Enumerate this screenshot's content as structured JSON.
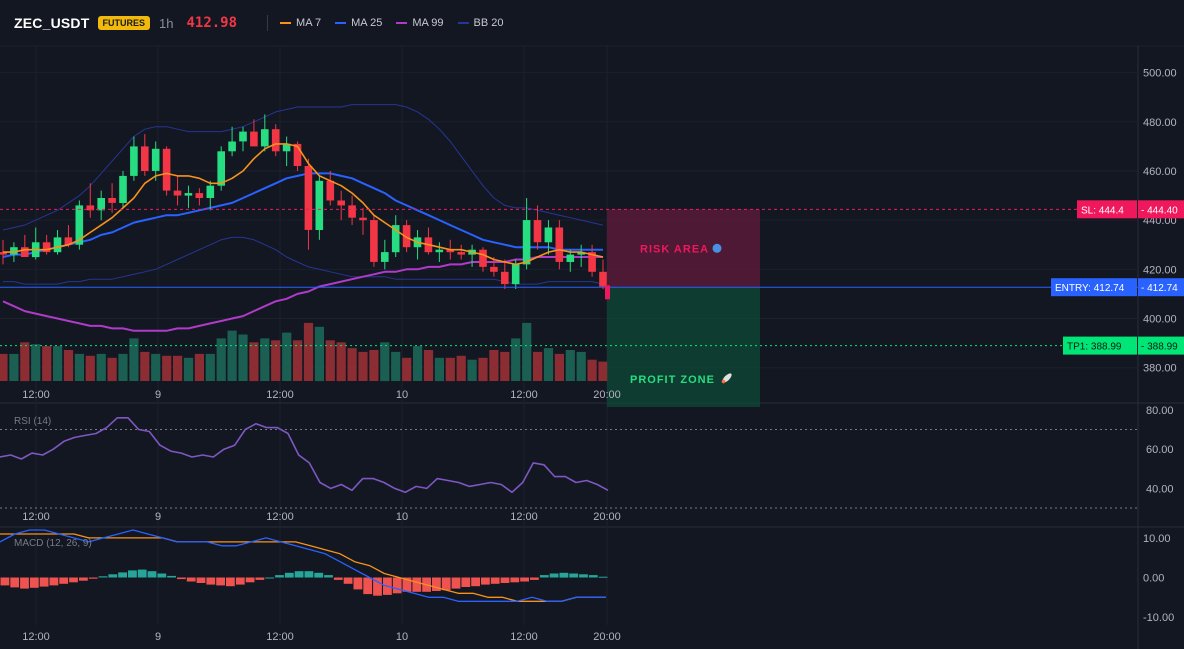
{
  "header": {
    "symbol": "ZEC_USDT",
    "badge": "FUTURES",
    "timeframe": "1h",
    "last_price": "412.98",
    "indicators": [
      {
        "label": "MA 7",
        "color": "#f7931a"
      },
      {
        "label": "MA 25",
        "color": "#2962ff"
      },
      {
        "label": "MA 99",
        "color": "#b03ac9"
      },
      {
        "label": "BB 20",
        "color": "#283593"
      }
    ]
  },
  "colors": {
    "up": "#26de81",
    "down": "#f23645",
    "vol_up": "#1b5e52",
    "vol_down": "#8b2d33",
    "sl": "#f0185c",
    "entry": "#2962ff",
    "tp": "#00e676"
  },
  "chart_data": [
    {
      "type": "candlestick",
      "title": "",
      "x_tick_labels": [
        "12:00",
        "9",
        "12:00",
        "10",
        "12:00",
        "20:00"
      ],
      "y_ticks": [
        380,
        400,
        420,
        440,
        460,
        480,
        500
      ],
      "ylim": [
        375,
        510
      ],
      "candles": [
        {
          "o": 427,
          "h": 432,
          "l": 422,
          "c": 426
        },
        {
          "o": 426,
          "h": 431,
          "l": 423,
          "c": 429
        },
        {
          "o": 429,
          "h": 434,
          "l": 425,
          "c": 425
        },
        {
          "o": 425,
          "h": 437,
          "l": 424,
          "c": 431
        },
        {
          "o": 431,
          "h": 434,
          "l": 426,
          "c": 427
        },
        {
          "o": 427,
          "h": 436,
          "l": 426,
          "c": 433
        },
        {
          "o": 433,
          "h": 438,
          "l": 429,
          "c": 430
        },
        {
          "o": 430,
          "h": 448,
          "l": 428,
          "c": 446
        },
        {
          "o": 446,
          "h": 455,
          "l": 441,
          "c": 444
        },
        {
          "o": 444,
          "h": 452,
          "l": 440,
          "c": 449
        },
        {
          "o": 449,
          "h": 455,
          "l": 443,
          "c": 447
        },
        {
          "o": 447,
          "h": 460,
          "l": 445,
          "c": 458
        },
        {
          "o": 458,
          "h": 474,
          "l": 456,
          "c": 470
        },
        {
          "o": 470,
          "h": 475,
          "l": 458,
          "c": 460
        },
        {
          "o": 460,
          "h": 472,
          "l": 456,
          "c": 469
        },
        {
          "o": 469,
          "h": 470,
          "l": 450,
          "c": 452
        },
        {
          "o": 452,
          "h": 458,
          "l": 446,
          "c": 450
        },
        {
          "o": 450,
          "h": 454,
          "l": 445,
          "c": 451
        },
        {
          "o": 451,
          "h": 453,
          "l": 446,
          "c": 449
        },
        {
          "o": 449,
          "h": 456,
          "l": 444,
          "c": 454
        },
        {
          "o": 454,
          "h": 470,
          "l": 452,
          "c": 468
        },
        {
          "o": 468,
          "h": 478,
          "l": 466,
          "c": 472
        },
        {
          "o": 472,
          "h": 478,
          "l": 468,
          "c": 476
        },
        {
          "o": 476,
          "h": 481,
          "l": 470,
          "c": 470
        },
        {
          "o": 470,
          "h": 483,
          "l": 468,
          "c": 477
        },
        {
          "o": 477,
          "h": 479,
          "l": 466,
          "c": 468
        },
        {
          "o": 468,
          "h": 474,
          "l": 462,
          "c": 471
        },
        {
          "o": 471,
          "h": 472,
          "l": 460,
          "c": 462
        },
        {
          "o": 462,
          "h": 465,
          "l": 428,
          "c": 436
        },
        {
          "o": 436,
          "h": 458,
          "l": 432,
          "c": 456
        },
        {
          "o": 456,
          "h": 460,
          "l": 446,
          "c": 448
        },
        {
          "o": 448,
          "h": 452,
          "l": 440,
          "c": 446
        },
        {
          "o": 446,
          "h": 450,
          "l": 438,
          "c": 441
        },
        {
          "o": 441,
          "h": 445,
          "l": 434,
          "c": 440
        },
        {
          "o": 440,
          "h": 442,
          "l": 421,
          "c": 423
        },
        {
          "o": 423,
          "h": 432,
          "l": 420,
          "c": 427
        },
        {
          "o": 427,
          "h": 442,
          "l": 425,
          "c": 438
        },
        {
          "o": 438,
          "h": 440,
          "l": 427,
          "c": 429
        },
        {
          "o": 429,
          "h": 436,
          "l": 424,
          "c": 433
        },
        {
          "o": 433,
          "h": 437,
          "l": 426,
          "c": 427
        },
        {
          "o": 427,
          "h": 431,
          "l": 423,
          "c": 428
        },
        {
          "o": 428,
          "h": 432,
          "l": 424,
          "c": 427
        },
        {
          "o": 427,
          "h": 430,
          "l": 424,
          "c": 426
        },
        {
          "o": 426,
          "h": 430,
          "l": 421,
          "c": 428
        },
        {
          "o": 428,
          "h": 429,
          "l": 419,
          "c": 421
        },
        {
          "o": 421,
          "h": 425,
          "l": 417,
          "c": 419
        },
        {
          "o": 419,
          "h": 424,
          "l": 412,
          "c": 414
        },
        {
          "o": 414,
          "h": 424,
          "l": 412,
          "c": 422
        },
        {
          "o": 422,
          "h": 449,
          "l": 420,
          "c": 440
        },
        {
          "o": 440,
          "h": 446,
          "l": 428,
          "c": 431
        },
        {
          "o": 431,
          "h": 440,
          "l": 426,
          "c": 437
        },
        {
          "o": 437,
          "h": 440,
          "l": 420,
          "c": 423
        },
        {
          "o": 423,
          "h": 428,
          "l": 419,
          "c": 426
        },
        {
          "o": 426,
          "h": 430,
          "l": 421,
          "c": 427
        },
        {
          "o": 427,
          "h": 430,
          "l": 417,
          "c": 419
        },
        {
          "o": 419,
          "h": 424,
          "l": 412,
          "c": 413
        }
      ],
      "volume": [
        14,
        14,
        20,
        19,
        18,
        18,
        16,
        14,
        13,
        14,
        12,
        14,
        22,
        15,
        14,
        13,
        13,
        12,
        14,
        14,
        22,
        26,
        24,
        20,
        22,
        21,
        25,
        21,
        30,
        28,
        21,
        20,
        17,
        15,
        16,
        20,
        15,
        12,
        18,
        16,
        12,
        12,
        13,
        11,
        12,
        16,
        15,
        22,
        30,
        15,
        17,
        14,
        16,
        15,
        11,
        10
      ],
      "overlays": [
        {
          "name": "MA 7",
          "values": [
            427,
            427,
            428,
            428,
            428,
            429,
            430,
            432,
            435,
            438,
            441,
            445,
            449,
            455,
            458,
            459,
            458,
            458,
            457,
            455,
            455,
            457,
            460,
            465,
            469,
            471,
            471,
            470,
            463,
            458,
            456,
            454,
            451,
            447,
            442,
            439,
            436,
            433,
            431,
            430,
            429,
            428,
            428,
            427,
            426,
            424,
            423,
            422,
            423,
            425,
            427,
            428,
            427,
            427,
            426,
            425
          ]
        },
        {
          "name": "MA 25",
          "values": [
            425,
            426,
            426,
            427,
            428,
            429,
            430,
            431,
            432,
            434,
            435,
            437,
            439,
            440,
            441,
            442,
            442,
            443,
            444,
            445,
            446,
            447,
            449,
            451,
            453,
            455,
            457,
            458,
            459,
            459,
            459,
            458,
            457,
            455,
            453,
            451,
            448,
            446,
            444,
            442,
            440,
            438,
            436,
            434,
            432,
            431,
            430,
            429,
            429,
            429,
            429,
            428,
            428,
            428,
            428,
            428
          ]
        },
        {
          "name": "MA 99",
          "values": [
            407,
            405,
            403,
            402,
            401,
            400,
            399,
            398,
            397,
            397,
            396,
            396,
            395,
            395,
            395,
            395,
            396,
            396,
            397,
            398,
            399,
            400,
            401,
            403,
            405,
            407,
            408,
            410,
            411,
            413,
            414,
            415,
            416,
            417,
            418,
            419,
            419,
            420,
            420,
            421,
            421,
            422,
            422,
            423,
            423,
            423,
            423,
            424,
            424,
            425,
            425,
            425,
            425,
            425,
            425,
            425
          ]
        },
        {
          "name": "BB upper",
          "values": [
            436,
            437,
            438,
            440,
            442,
            444,
            447,
            450,
            454,
            459,
            464,
            469,
            474,
            477,
            478,
            478,
            477,
            476,
            476,
            476,
            476,
            477,
            478,
            480,
            482,
            484,
            485,
            486,
            486,
            486,
            486,
            486,
            487,
            487,
            487,
            487,
            487,
            486,
            484,
            481,
            477,
            472,
            466,
            460,
            454,
            449,
            446,
            445,
            445,
            444,
            443,
            442,
            441,
            440,
            439,
            438
          ]
        },
        {
          "name": "BB lower",
          "values": [
            415,
            415,
            414,
            414,
            414,
            414,
            415,
            415,
            416,
            416,
            416,
            417,
            418,
            419,
            420,
            422,
            424,
            426,
            428,
            430,
            432,
            433,
            433,
            432,
            430,
            428,
            425,
            423,
            421,
            420,
            419,
            418,
            417,
            417,
            417,
            417,
            416,
            416,
            416,
            416,
            416,
            416,
            416,
            416,
            416,
            416,
            415,
            414,
            414,
            414,
            415,
            415,
            415,
            415,
            415,
            414
          ]
        }
      ],
      "price_lines": [
        {
          "label": "SL: 444.4",
          "value": 444.4,
          "axis": "444.40"
        },
        {
          "label": "ENTRY: 412.74",
          "value": 412.74,
          "axis": "412.74"
        },
        {
          "label": "TP1: 388.99",
          "value": 388.99,
          "axis": "388.99"
        }
      ],
      "zones": [
        {
          "label": "RISK AREA",
          "from": 412.74,
          "to": 444.4
        },
        {
          "label": "PROFIT ZONE",
          "from": 377,
          "to": 412.74
        }
      ]
    },
    {
      "type": "line",
      "title": "RSI (14)",
      "y_ticks": [
        40,
        60,
        80
      ],
      "ylim": [
        30,
        82
      ],
      "levels": [
        70,
        30
      ],
      "x_tick_labels": [
        "12:00",
        "9",
        "12:00",
        "10",
        "12:00",
        "20:00"
      ],
      "series": [
        {
          "values": [
            56,
            57,
            55,
            58,
            57,
            60,
            64,
            66,
            67,
            68,
            71,
            76,
            76,
            70,
            69,
            62,
            59,
            58,
            56,
            57,
            56,
            60,
            62,
            70,
            73,
            71,
            71,
            68,
            57,
            53,
            43,
            40,
            42,
            39,
            45,
            45,
            43,
            40,
            38,
            41,
            40,
            45,
            44,
            43,
            41,
            42,
            43,
            42,
            38,
            43,
            53,
            52,
            46,
            46,
            43,
            44,
            42,
            39
          ]
        }
      ]
    },
    {
      "type": "bar",
      "title": "MACD (12, 26, 9)",
      "y_ticks": [
        -10,
        0,
        10
      ],
      "ylim": [
        -12,
        12
      ],
      "x_tick_labels": [
        "12:00",
        "9",
        "12:00",
        "10",
        "12:00",
        "20:00"
      ],
      "histogram": [
        -2,
        -2.5,
        -2.8,
        -2.6,
        -2.3,
        -2,
        -1.6,
        -1.2,
        -0.8,
        -0.3,
        0.3,
        0.8,
        1.3,
        1.8,
        2,
        1.6,
        1,
        0.4,
        -0.4,
        -1,
        -1.4,
        -1.8,
        -2,
        -2.2,
        -1.8,
        -1.2,
        -0.6,
        0,
        0.6,
        1.2,
        1.6,
        1.6,
        1.2,
        0.6,
        -0.6,
        -1.6,
        -3,
        -4.2,
        -4.6,
        -4.4,
        -4,
        -3.6,
        -3.6,
        -3.6,
        -3.4,
        -3.2,
        -2.8,
        -2.4,
        -2.2,
        -1.8,
        -1.6,
        -1.4,
        -1.2,
        -1,
        -0.6,
        0.6,
        1,
        1.2,
        1,
        0.8,
        0.6,
        0.2
      ],
      "series": [
        {
          "values": [
            9,
            11,
            12,
            12,
            11,
            10,
            9,
            10,
            11,
            12,
            11,
            10,
            9,
            9,
            9,
            8,
            8,
            9,
            10,
            9,
            8,
            7,
            6,
            4,
            2,
            0,
            -2,
            -3,
            -4,
            -5,
            -5,
            -6,
            -6,
            -6,
            -6,
            -6,
            -5,
            -6,
            -6,
            -5,
            -5,
            -5
          ]
        },
        {
          "values": [
            11,
            11,
            11,
            11,
            11,
            11,
            10,
            10,
            10,
            10,
            10,
            10,
            9,
            9,
            9,
            9,
            9,
            9,
            9,
            9,
            9,
            8,
            7,
            6,
            4,
            3,
            1,
            0,
            -1,
            -2,
            -3,
            -4,
            -4,
            -5,
            -5,
            -6,
            -6,
            -6,
            -6,
            -5,
            -5,
            -5
          ]
        }
      ]
    }
  ]
}
